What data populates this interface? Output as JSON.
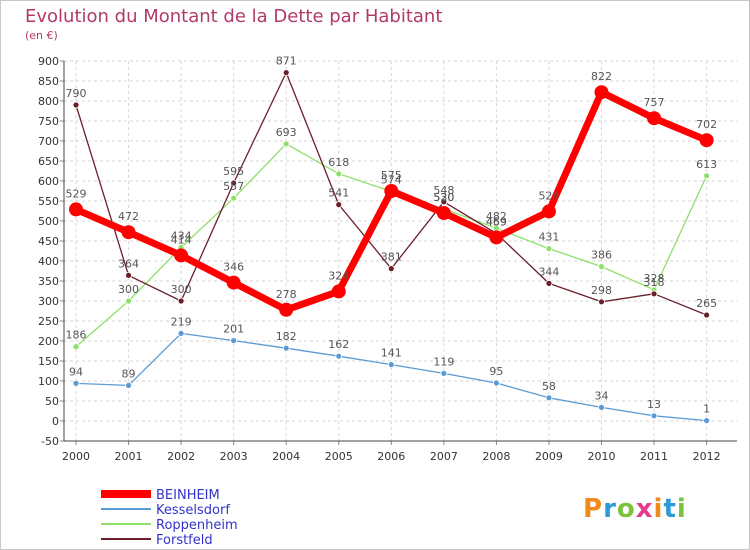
{
  "header": {
    "title": "Evolution du Montant de la Dette par Habitant",
    "subtitle": "(en €)"
  },
  "logo": {
    "text": "Proxiti",
    "colors": [
      "#f08a1c",
      "#2a9ad8",
      "#7cc23a",
      "#e83a8e"
    ]
  },
  "chart_data": {
    "type": "line",
    "title": "Evolution du Montant de la Dette par Habitant",
    "subtitle": "(en €)",
    "x": [
      "2000",
      "2001",
      "2002",
      "2003",
      "2004",
      "2005",
      "2006",
      "2007",
      "2008",
      "2009",
      "2010",
      "2011",
      "2012"
    ],
    "y_ticks": [
      -50,
      0,
      50,
      100,
      150,
      200,
      250,
      300,
      350,
      400,
      450,
      500,
      550,
      600,
      650,
      700,
      750,
      800,
      850,
      900
    ],
    "ylim": [
      -50,
      900
    ],
    "grid": true,
    "legend_position": "bottom-left",
    "series": [
      {
        "name": "BEINHEIM",
        "color": "#ff0000",
        "width": 7,
        "marker": 7,
        "values": [
          529,
          472,
          414,
          346,
          278,
          324,
          575,
          520,
          459,
          524,
          822,
          757,
          702
        ],
        "labels": [
          "529",
          "472",
          "414",
          "346",
          "278",
          "324",
          "575",
          "520",
          "459",
          "524",
          "822",
          "757",
          "702"
        ]
      },
      {
        "name": "Kesselsdorf",
        "color": "#5b9bd5",
        "width": 1.3,
        "marker": 3,
        "values": [
          94,
          89,
          219,
          201,
          182,
          162,
          141,
          119,
          95,
          58,
          34,
          13,
          1
        ],
        "labels": [
          "94",
          "89",
          "219",
          "201",
          "182",
          "162",
          "141",
          "119",
          "95",
          "58",
          "34",
          "13",
          "1"
        ]
      },
      {
        "name": "Roppenheim",
        "color": "#8fe06a",
        "width": 1.3,
        "marker": 3,
        "values": [
          186,
          300,
          434,
          557,
          693,
          618,
          574,
          530,
          482,
          431,
          386,
          328,
          613
        ],
        "labels": [
          "186",
          "300",
          "434",
          "557",
          "693",
          "618",
          "574",
          "530",
          "482",
          "431",
          "386",
          "328",
          "613"
        ]
      },
      {
        "name": "Forstfeld",
        "color": "#6b1f2a",
        "width": 1.3,
        "marker": 3,
        "values": [
          790,
          364,
          300,
          595,
          871,
          541,
          381,
          548,
          469,
          344,
          298,
          318,
          265
        ],
        "labels": [
          "790",
          "364",
          "300",
          "595",
          "871",
          "541",
          "381",
          "548",
          "469",
          "344",
          "298",
          "318",
          "265"
        ]
      }
    ]
  }
}
